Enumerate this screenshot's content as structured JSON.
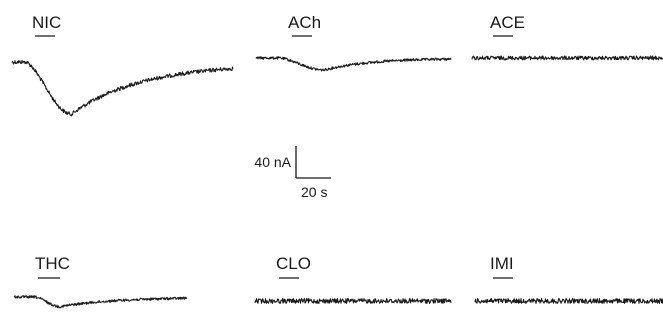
{
  "panels": [
    {
      "id": "nic",
      "label": "NIC",
      "trace": {
        "kind": "response",
        "peak_na": -65,
        "noise": 1.2
      }
    },
    {
      "id": "ach",
      "label": "ACh",
      "trace": {
        "kind": "response",
        "peak_na": -15,
        "noise": 0.8
      }
    },
    {
      "id": "ace",
      "label": "ACE",
      "trace": {
        "kind": "flat",
        "peak_na": 0,
        "noise": 1.2
      }
    },
    {
      "id": "thc",
      "label": "THC",
      "trace": {
        "kind": "response",
        "peak_na": -12,
        "noise": 0.8
      }
    },
    {
      "id": "clo",
      "label": "CLO",
      "trace": {
        "kind": "flat",
        "peak_na": 0,
        "noise": 1.5
      }
    },
    {
      "id": "imi",
      "label": "IMI",
      "trace": {
        "kind": "flat",
        "peak_na": 0,
        "noise": 1.5
      }
    }
  ],
  "scale_bar": {
    "current_label": "40 nA",
    "time_label": "20 s"
  }
}
